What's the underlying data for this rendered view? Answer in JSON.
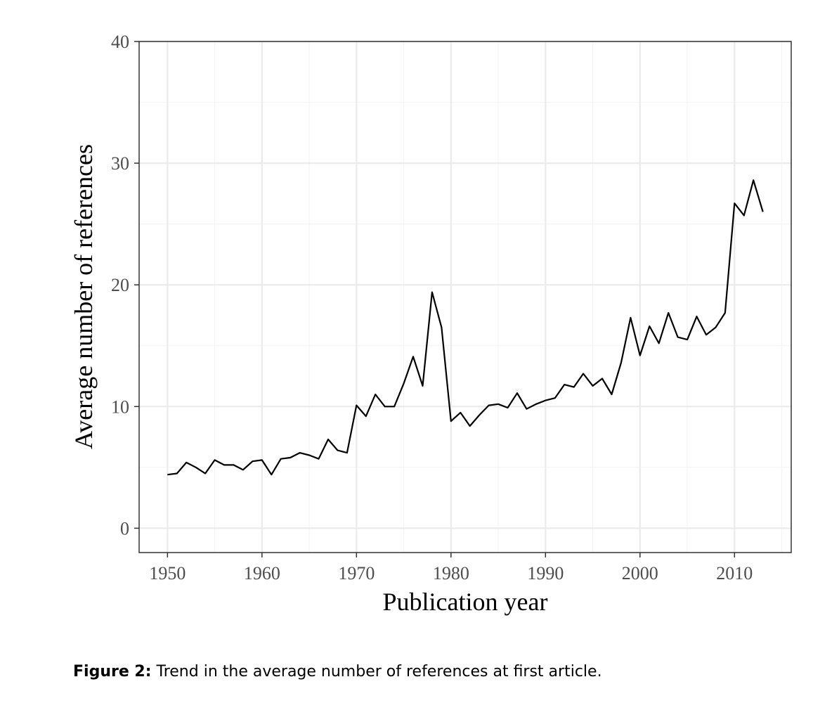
{
  "chart_data": {
    "type": "line",
    "title": "",
    "xlabel": "Publication year",
    "ylabel": "Average number of references",
    "xlim": [
      1947,
      2016
    ],
    "ylim": [
      -2,
      40
    ],
    "x_ticks": [
      1950,
      1960,
      1970,
      1980,
      1990,
      2000,
      2010
    ],
    "y_ticks": [
      0,
      10,
      20,
      30,
      40
    ],
    "grid": true,
    "legend": "none",
    "colors": {
      "line": "#000000",
      "panel_border": "#333333",
      "grid_major": "#ebebeb",
      "grid_minor": "#f4f4f4",
      "tick_label": "#4d4d4d"
    },
    "series": [
      {
        "x": [
          1950,
          1951,
          1952,
          1953,
          1954,
          1955,
          1956,
          1957,
          1958,
          1959,
          1960,
          1961,
          1962,
          1963,
          1964,
          1965,
          1966,
          1967,
          1968,
          1969,
          1970,
          1971,
          1972,
          1973,
          1974,
          1975,
          1976,
          1977,
          1978,
          1979,
          1980,
          1981,
          1982,
          1983,
          1984,
          1985,
          1986,
          1987,
          1988,
          1989,
          1990,
          1991,
          1992,
          1993,
          1994,
          1995,
          1996,
          1997,
          1998,
          1999,
          2000,
          2001,
          2002,
          2003,
          2004,
          2005,
          2006,
          2007,
          2008,
          2009,
          2010,
          2011,
          2012,
          2013
        ],
        "values": [
          4.4,
          4.5,
          5.4,
          5.0,
          4.5,
          5.6,
          5.2,
          5.2,
          4.8,
          5.5,
          5.6,
          4.4,
          5.7,
          5.8,
          6.2,
          6.0,
          5.7,
          7.3,
          6.4,
          6.2,
          10.1,
          9.2,
          11.0,
          10.0,
          10.0,
          11.9,
          14.1,
          11.7,
          19.4,
          16.5,
          8.8,
          9.5,
          8.4,
          9.3,
          10.1,
          10.2,
          9.9,
          11.1,
          9.8,
          10.2,
          10.5,
          10.7,
          11.8,
          11.6,
          12.7,
          11.7,
          12.3,
          11.0,
          13.6,
          17.3,
          14.2,
          16.6,
          15.2,
          17.7,
          15.7,
          15.5,
          17.4,
          15.9,
          16.5,
          17.7,
          26.7,
          25.7,
          28.6,
          26.0
        ]
      }
    ]
  },
  "caption": {
    "label": "Figure 2:",
    "text": " Trend in the average number of references at first article."
  }
}
